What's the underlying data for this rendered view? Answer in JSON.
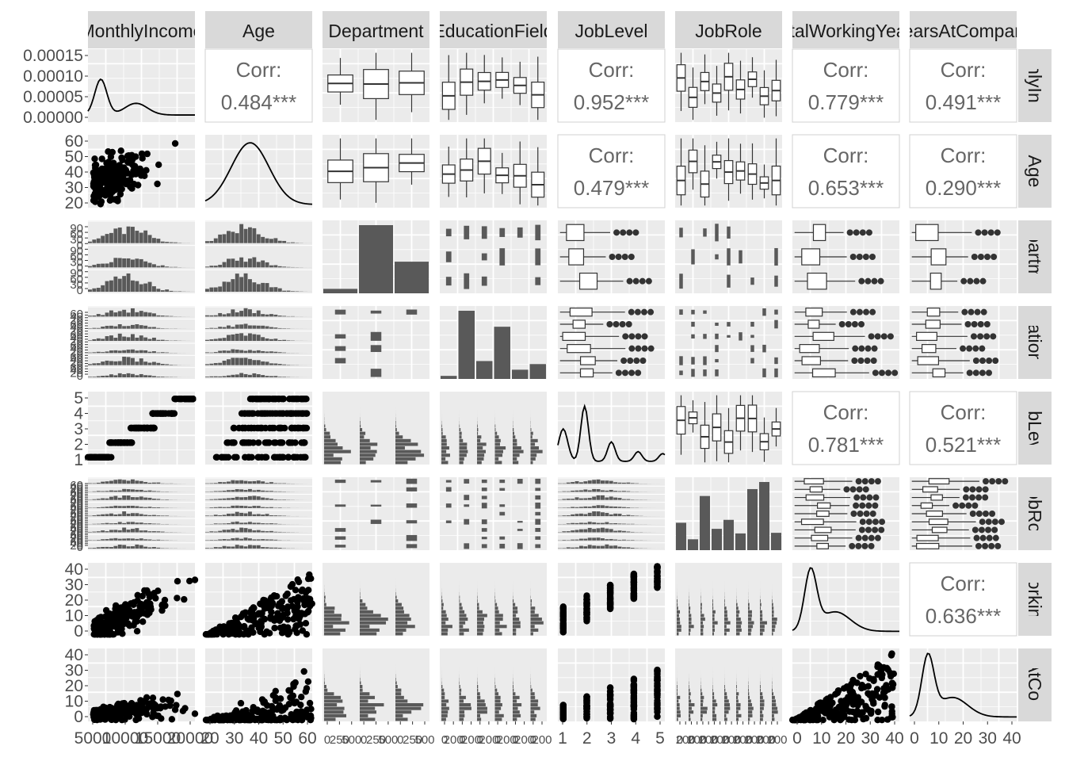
{
  "chart_data": {
    "type": "pairs",
    "variables": [
      "MonthlyIncome",
      "Age",
      "Department",
      "EducationField",
      "JobLevel",
      "JobRole",
      "TotalWorkingYears",
      "YearsAtCompany"
    ],
    "strip_labels_top": [
      "MonthlyIncome",
      "Age",
      "Department",
      "EducationField",
      "JobLevel",
      "JobRole",
      "TotalWorkingYears",
      "YearsAtCompany"
    ],
    "strip_labels_right": [
      "MonthlyIncome",
      "Age",
      "Department",
      "EducationField",
      "JobLevel",
      "JobRole",
      "TotalWorkingYears",
      "YearsAtCompany"
    ],
    "corr_label": "Corr:",
    "correlations": [
      {
        "row": 0,
        "col": 1,
        "value": "0.484***"
      },
      {
        "row": 0,
        "col": 4,
        "value": "0.952***"
      },
      {
        "row": 0,
        "col": 6,
        "value": "0.779***"
      },
      {
        "row": 0,
        "col": 7,
        "value": "0.491***"
      },
      {
        "row": 1,
        "col": 4,
        "value": "0.479***"
      },
      {
        "row": 1,
        "col": 6,
        "value": "0.653***"
      },
      {
        "row": 1,
        "col": 7,
        "value": "0.290***"
      },
      {
        "row": 4,
        "col": 6,
        "value": "0.781***"
      },
      {
        "row": 4,
        "col": 7,
        "value": "0.521***"
      },
      {
        "row": 6,
        "col": 7,
        "value": "0.636***"
      }
    ],
    "y_ticks": [
      [
        "0.00000",
        "0.00005",
        "0.00010",
        "0.00015"
      ],
      [
        "20",
        "30",
        "40",
        "50",
        "60"
      ],
      [
        "0",
        "30",
        "60",
        "90",
        "0",
        "30",
        "60",
        "90",
        "0",
        "30",
        "60",
        "90"
      ],
      [
        "0",
        "20",
        "40",
        "60",
        "0",
        "20",
        "40",
        "60",
        "0",
        "20",
        "40",
        "60",
        "0",
        "20",
        "40",
        "60",
        "0",
        "20",
        "40",
        "60",
        "0",
        "20",
        "40",
        "60"
      ],
      [
        "1",
        "2",
        "3",
        "4",
        "5"
      ],
      [
        "0",
        "20",
        "40",
        "60",
        "0",
        "20",
        "40",
        "60",
        "0",
        "20",
        "40",
        "60",
        "0",
        "20",
        "40",
        "60",
        "0",
        "20",
        "40",
        "60",
        "0",
        "20",
        "40",
        "60",
        "0",
        "20",
        "40",
        "60",
        "0",
        "20",
        "40",
        "60",
        "0",
        "20",
        "40",
        "60"
      ],
      [
        "0",
        "10",
        "20",
        "30",
        "40"
      ],
      [
        "0",
        "10",
        "20",
        "30",
        "40"
      ]
    ],
    "x_ticks": [
      [
        "5000",
        "10000",
        "15000",
        "20000"
      ],
      [
        "20",
        "30",
        "40",
        "50",
        "60"
      ],
      [
        "0",
        "250",
        "500",
        "0",
        "250",
        "500",
        "0",
        "250",
        "500"
      ],
      [
        "0",
        "200",
        "0",
        "200",
        "0",
        "200",
        "0",
        "200",
        "0",
        "200",
        "0",
        "200"
      ],
      [
        "1",
        "2",
        "3",
        "4",
        "5"
      ],
      [
        "0",
        "200",
        "0",
        "200",
        "0",
        "200",
        "0",
        "200",
        "0",
        "200",
        "0",
        "200",
        "0",
        "200",
        "0",
        "200",
        "0",
        "200"
      ],
      [
        "0",
        "10",
        "20",
        "30",
        "40"
      ],
      [
        "0",
        "10",
        "20",
        "30",
        "40"
      ]
    ],
    "department_counts": [
      63,
      961,
      446
    ],
    "educationfield_counts": [
      27,
      606,
      159,
      464,
      82,
      132
    ],
    "jobrole_counts": [
      131,
      52,
      259,
      102,
      145,
      80,
      292,
      326,
      83
    ]
  }
}
